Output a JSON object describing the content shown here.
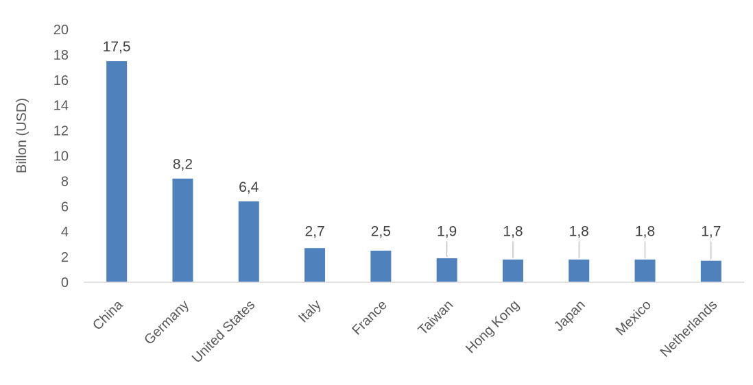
{
  "chart_data": {
    "type": "bar",
    "title": "",
    "xlabel": "",
    "ylabel": "Billon (USD)",
    "ylim": [
      0,
      20
    ],
    "yticks": [
      0,
      2,
      4,
      6,
      8,
      10,
      12,
      14,
      16,
      18,
      20
    ],
    "grid": false,
    "legend": "none",
    "bar_color": "#4f81bd",
    "categories": [
      "China",
      "Germany",
      "United States",
      "Italy",
      "France",
      "Taiwan",
      "Hong Kong",
      "Japan",
      "Mexico",
      "Netherlands"
    ],
    "values": [
      17.5,
      8.2,
      6.4,
      2.7,
      2.5,
      1.9,
      1.8,
      1.8,
      1.8,
      1.7
    ],
    "data_labels": [
      "17,5",
      "8,2",
      "6,4",
      "2,7",
      "2,5",
      "1,9",
      "1,8",
      "1,8",
      "1,8",
      "1,7"
    ]
  }
}
